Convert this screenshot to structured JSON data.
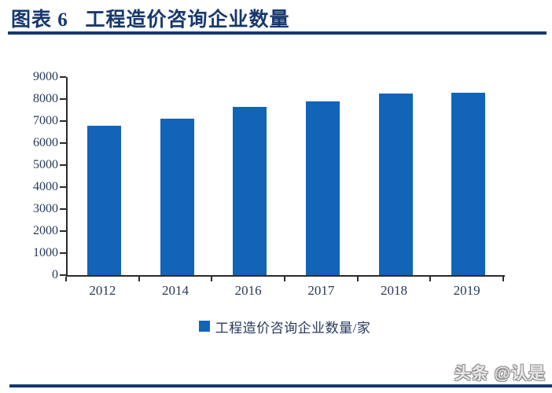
{
  "header": {
    "title": "图表 6   工程造价咨询企业数量",
    "accent_color": "#17386E"
  },
  "chart_data": {
    "type": "bar",
    "title": "工程造价咨询企业数量",
    "categories": [
      "2012",
      "2014",
      "2016",
      "2017",
      "2018",
      "2019"
    ],
    "values": [
      6800,
      7100,
      7650,
      7900,
      8250,
      8300
    ],
    "series_name": "工程造价咨询企业数量/家",
    "ylabel": "",
    "xlabel": "",
    "ylim": [
      0,
      9000
    ],
    "ytick_step": 1000,
    "grid": false,
    "legend_position": "bottom",
    "bar_color": "#1164B8",
    "axis_color": "#2b2b2b",
    "tick_label_color": "#27395c"
  },
  "legend": {
    "label": "工程造价咨询企业数量/家",
    "swatch_color": "#1164B8"
  },
  "watermark": {
    "text": "头条 @认是"
  }
}
